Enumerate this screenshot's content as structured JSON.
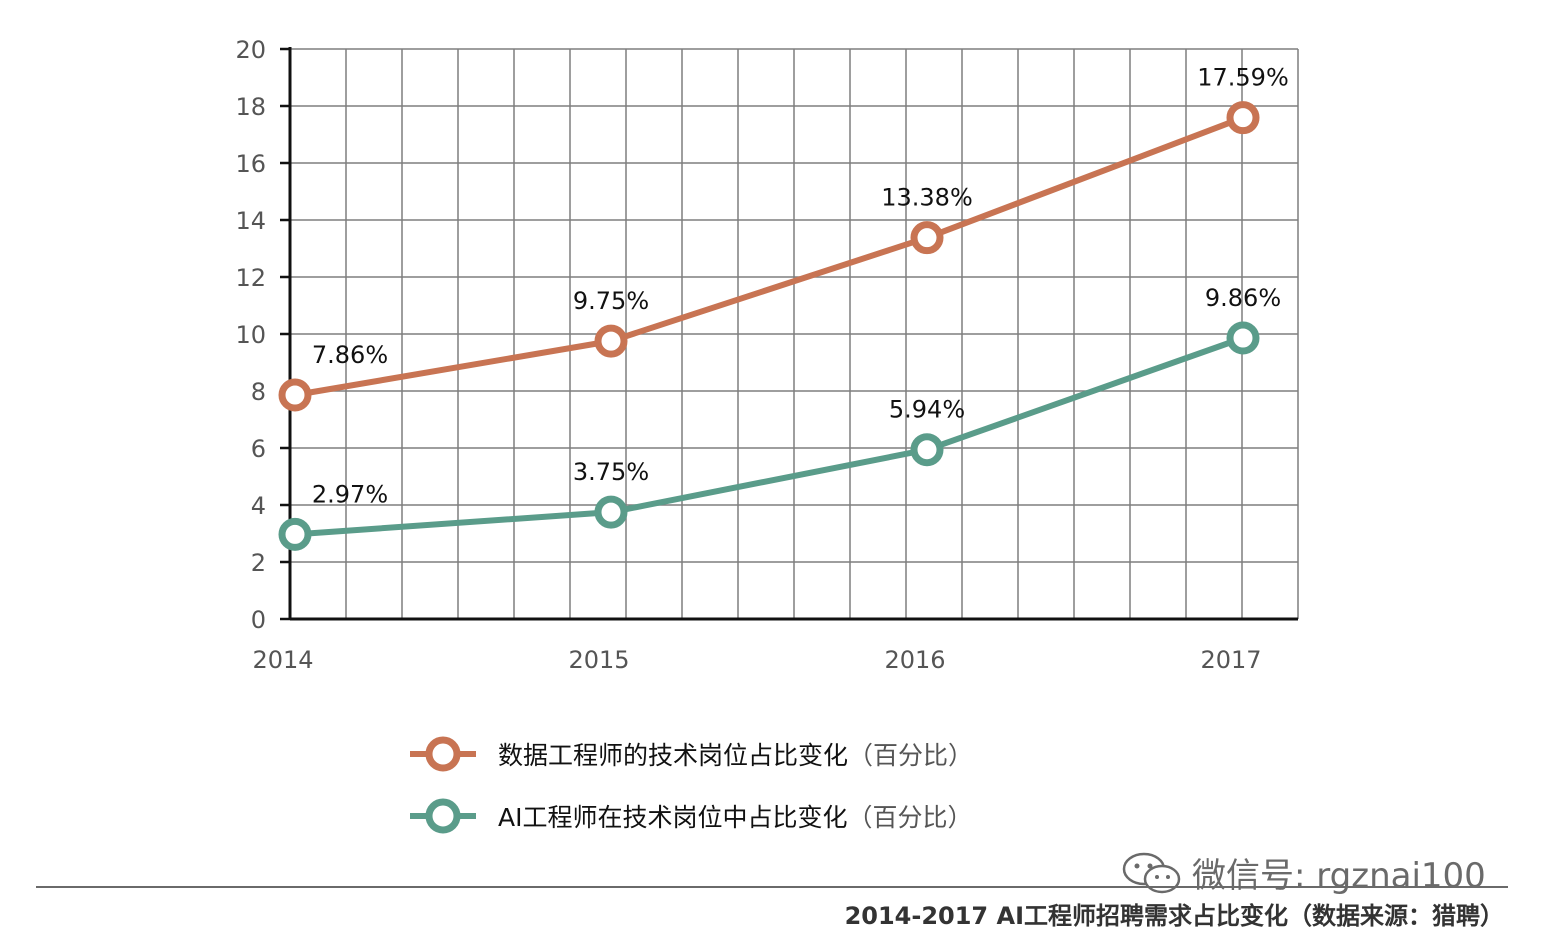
{
  "chart_data": {
    "type": "line",
    "categories": [
      "2014",
      "2015",
      "2016",
      "2017"
    ],
    "ylim": [
      0,
      20
    ],
    "yticks": [
      0,
      2,
      4,
      6,
      8,
      10,
      12,
      14,
      16,
      18,
      20
    ],
    "grid": true,
    "series": [
      {
        "name": "数据工程师的技术岗位占比变化",
        "name_suffix": "（百分比）",
        "color": "#c87453",
        "values": [
          7.86,
          9.75,
          13.38,
          17.59
        ],
        "labels": [
          "7.86%",
          "9.75%",
          "13.38%",
          "17.59%"
        ]
      },
      {
        "name": "AI工程师在技术岗位中占比变化",
        "name_suffix": "（百分比）",
        "color": "#5a9c8a",
        "values": [
          2.97,
          3.75,
          5.94,
          9.86
        ],
        "labels": [
          "2.97%",
          "3.75%",
          "5.94%",
          "9.86%"
        ]
      }
    ],
    "legend_position": "bottom"
  },
  "watermark": "微信号: rgznai100",
  "caption": "2014-2017 AI工程师招聘需求占比变化（数据来源：猎聘）",
  "icons": {
    "watermark_icon": "wechat-icon"
  }
}
